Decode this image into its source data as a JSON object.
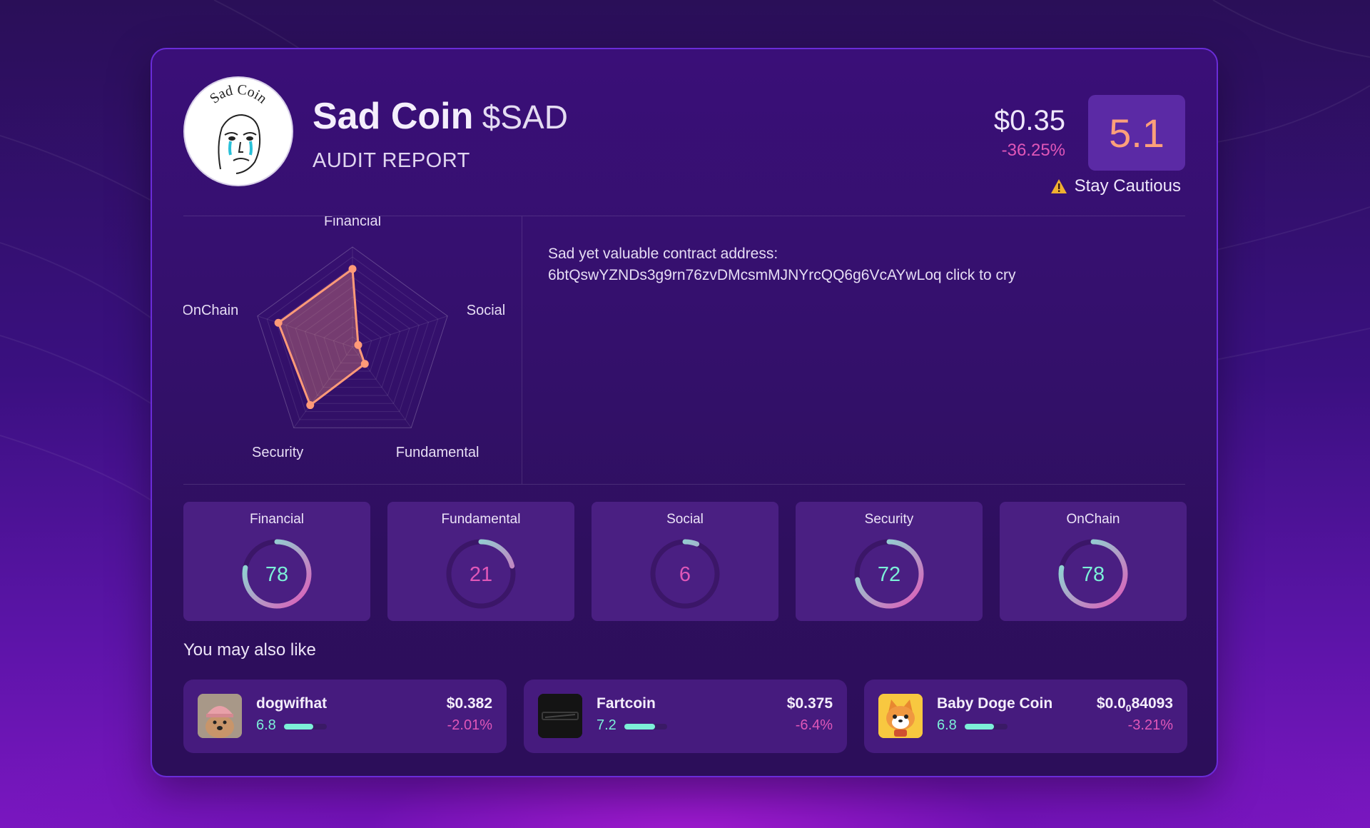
{
  "header": {
    "coin_name": "Sad Coin",
    "ticker": "$SAD",
    "subtitle": "AUDIT REPORT",
    "logo_text": "Sad Coin",
    "price": "$0.35",
    "change": "-36.25%",
    "score": "5.1",
    "warning_label": "Stay Cautious"
  },
  "contract": {
    "label": "Sad yet valuable contract address:",
    "address": "6btQswYZNDs3g9rn76zvDMcsmMJNYrcQQ6g6VcAYwLoq",
    "suffix": "click to cry"
  },
  "chart_data": {
    "type": "radar",
    "axes": [
      "Financial",
      "Social",
      "Fundamental",
      "Security",
      "OnChain"
    ],
    "values": [
      78,
      6,
      21,
      72,
      78
    ],
    "range": [
      0,
      100
    ],
    "color": "#ff9a78"
  },
  "metrics": [
    {
      "label": "Financial",
      "value": 78
    },
    {
      "label": "Fundamental",
      "value": 21
    },
    {
      "label": "Social",
      "value": 6
    },
    {
      "label": "Security",
      "value": 72
    },
    {
      "label": "OnChain",
      "value": 78
    }
  ],
  "recommendations": {
    "title": "You may also like",
    "items": [
      {
        "name": "dogwifhat",
        "score": "6.8",
        "score_value": 6.8,
        "price": "$0.382",
        "change": "-2.01%",
        "icon": "dog-hat-icon"
      },
      {
        "name": "Fartcoin",
        "score": "7.2",
        "score_value": 7.2,
        "price": "$0.375",
        "change": "-6.4%",
        "icon": "fartcoin-logo-icon"
      },
      {
        "name": "Baby Doge Coin",
        "score": "6.8",
        "score_value": 6.8,
        "price_prefix": "$0.0",
        "price_sub": "0",
        "price_suffix": "84093",
        "change": "-3.21%",
        "icon": "shiba-dog-icon"
      }
    ]
  },
  "colors": {
    "accent_pink": "#e057b8",
    "accent_teal": "#7cf0d8",
    "score_orange": "#ffa07a",
    "warning": "#f0b030"
  }
}
